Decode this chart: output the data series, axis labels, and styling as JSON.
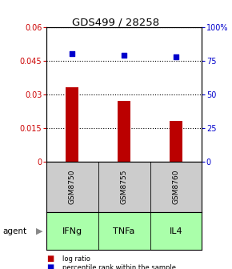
{
  "title": "GDS499 / 28258",
  "bar_values": [
    0.033,
    0.027,
    0.018
  ],
  "percentile_values": [
    80,
    79,
    78
  ],
  "categories": [
    "GSM8750",
    "GSM8755",
    "GSM8760"
  ],
  "agents": [
    "IFNg",
    "TNFa",
    "IL4"
  ],
  "bar_color": "#bb0000",
  "dot_color": "#0000cc",
  "left_ylim": [
    0,
    0.06
  ],
  "right_ylim": [
    0,
    100
  ],
  "left_yticks": [
    0,
    0.015,
    0.03,
    0.045,
    0.06
  ],
  "left_ytick_labels": [
    "0",
    "0.015",
    "0.03",
    "0.045",
    "0.06"
  ],
  "right_yticks": [
    0,
    25,
    50,
    75,
    100
  ],
  "right_ytick_labels": [
    "0",
    "25",
    "50",
    "75",
    "100%"
  ],
  "bg_color": "#ffffff",
  "plot_bg": "#ffffff",
  "agent_color": "#aaffaa",
  "sample_color": "#cccccc",
  "legend_log_ratio": "log ratio",
  "legend_percentile": "percentile rank within the sample",
  "agent_label": "agent",
  "bar_width": 0.25
}
